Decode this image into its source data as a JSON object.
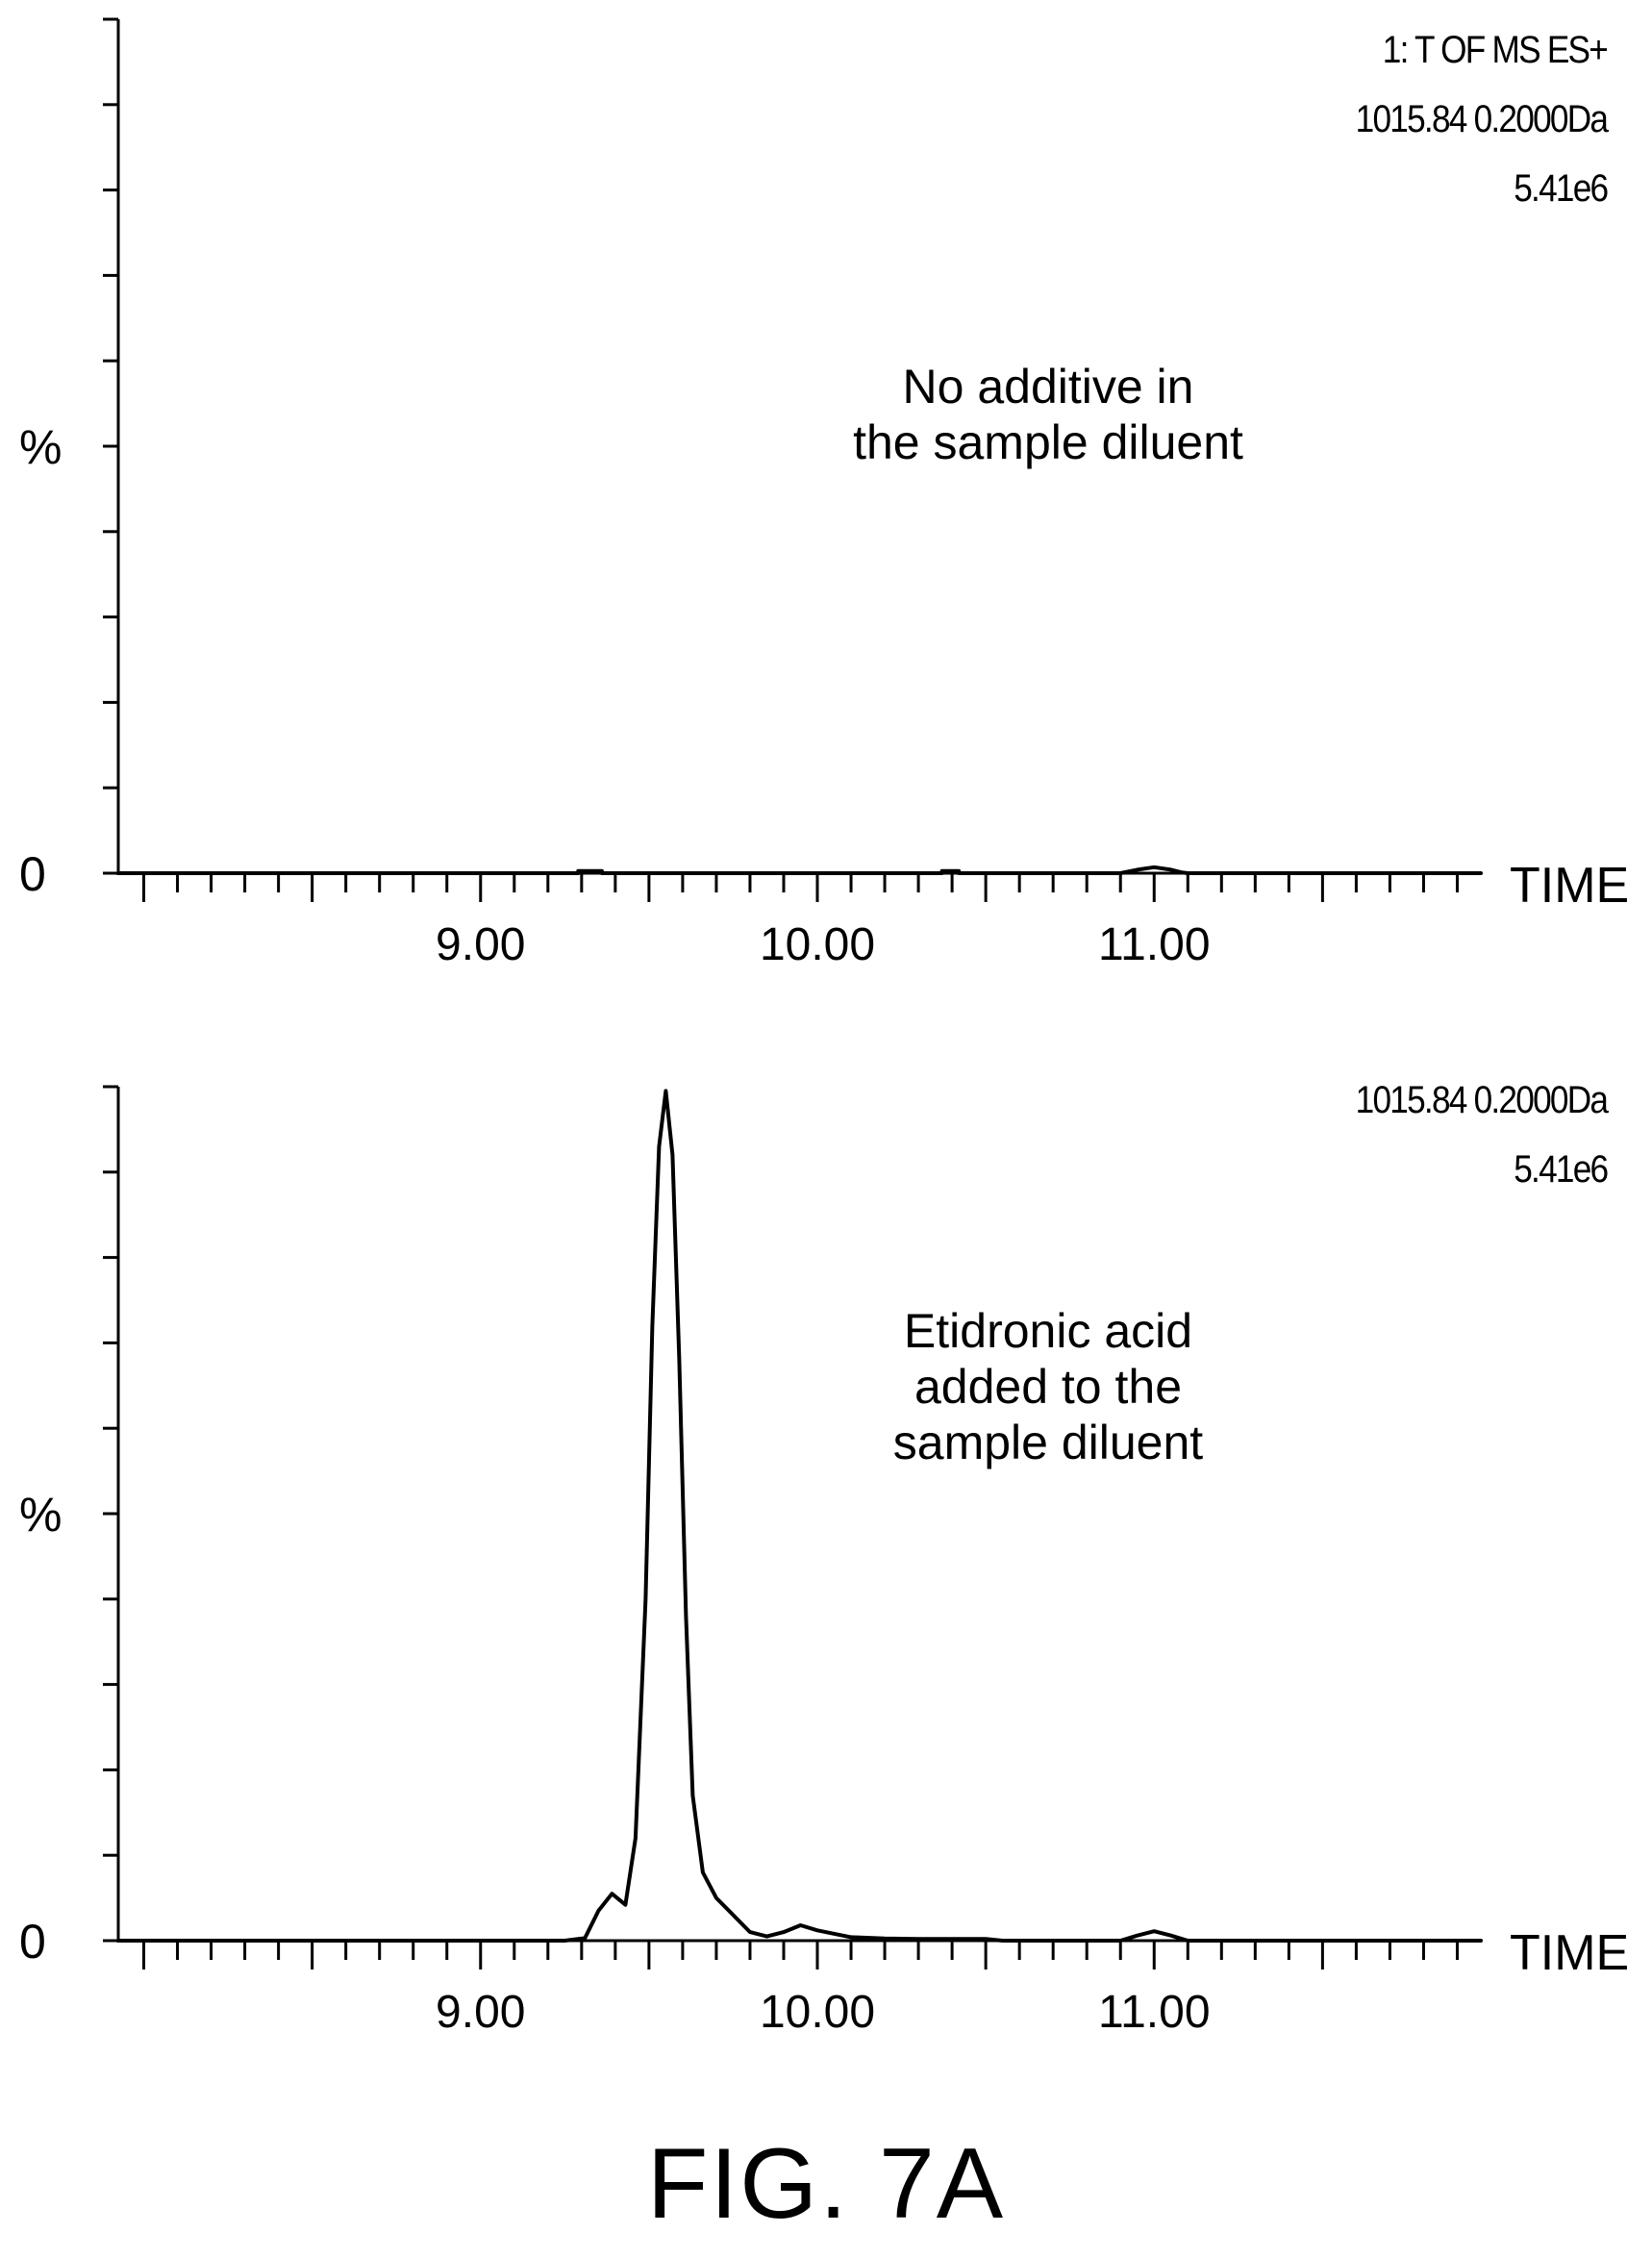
{
  "figure": {
    "caption": "FIG. 7A"
  },
  "chart_data": [
    {
      "type": "line",
      "header": [
        "1: T OF MS ES+",
        "1015.84 0.2000Da",
        "5.41e6"
      ],
      "annotation": "No additive in\nthe sample diluent",
      "xlabel": "TIME",
      "ylabel": "%",
      "y_tick_labels": [
        {
          "value": 50,
          "label": "%"
        },
        {
          "value": 0,
          "label": "0"
        }
      ],
      "x_tick_labels": [
        "9.00",
        "10.00",
        "11.00"
      ],
      "x_ticks": [
        9.0,
        10.0,
        11.0
      ],
      "xlim": [
        7.93,
        11.97
      ],
      "ylim": [
        0,
        100
      ],
      "grid": false,
      "series": [
        {
          "x": [
            7.93,
            9.29,
            9.29,
            9.36,
            9.36,
            10.37,
            10.37,
            10.42,
            10.42,
            10.9,
            10.95,
            11.0,
            11.05,
            11.08,
            11.1,
            11.97
          ],
          "y": [
            0,
            0,
            0.25,
            0.25,
            0,
            0,
            0.25,
            0.25,
            0,
            0,
            0.4,
            0.7,
            0.4,
            0.1,
            0,
            0
          ]
        }
      ]
    },
    {
      "type": "line",
      "header": [
        "1015.84 0.2000Da",
        "5.41e6"
      ],
      "annotation": "Etidronic acid\nadded to the\nsample diluent",
      "xlabel": "TIME",
      "ylabel": "%",
      "y_tick_labels": [
        {
          "value": 50,
          "label": "%"
        },
        {
          "value": 0,
          "label": "0"
        }
      ],
      "x_tick_labels": [
        "9.00",
        "10.00",
        "11.00"
      ],
      "x_ticks": [
        9.0,
        10.0,
        11.0
      ],
      "xlim": [
        7.93,
        11.97
      ],
      "ylim": [
        0,
        100
      ],
      "grid": false,
      "series": [
        {
          "x": [
            7.93,
            9.25,
            9.31,
            9.35,
            9.39,
            9.43,
            9.46,
            9.49,
            9.51,
            9.53,
            9.55,
            9.57,
            9.59,
            9.61,
            9.63,
            9.66,
            9.7,
            9.75,
            9.8,
            9.85,
            9.9,
            9.95,
            10.0,
            10.1,
            10.2,
            10.3,
            10.5,
            10.55,
            10.9,
            10.95,
            11.0,
            11.05,
            11.1,
            11.97
          ],
          "y": [
            0,
            0,
            0.3,
            3.5,
            5.5,
            4.2,
            12,
            40,
            72,
            93,
            99.5,
            92,
            68,
            38,
            17,
            8,
            5,
            3,
            1,
            0.5,
            1,
            1.8,
            1.2,
            0.4,
            0.25,
            0.2,
            0.2,
            0,
            0,
            0.6,
            1.1,
            0.6,
            0,
            0
          ]
        }
      ]
    }
  ]
}
